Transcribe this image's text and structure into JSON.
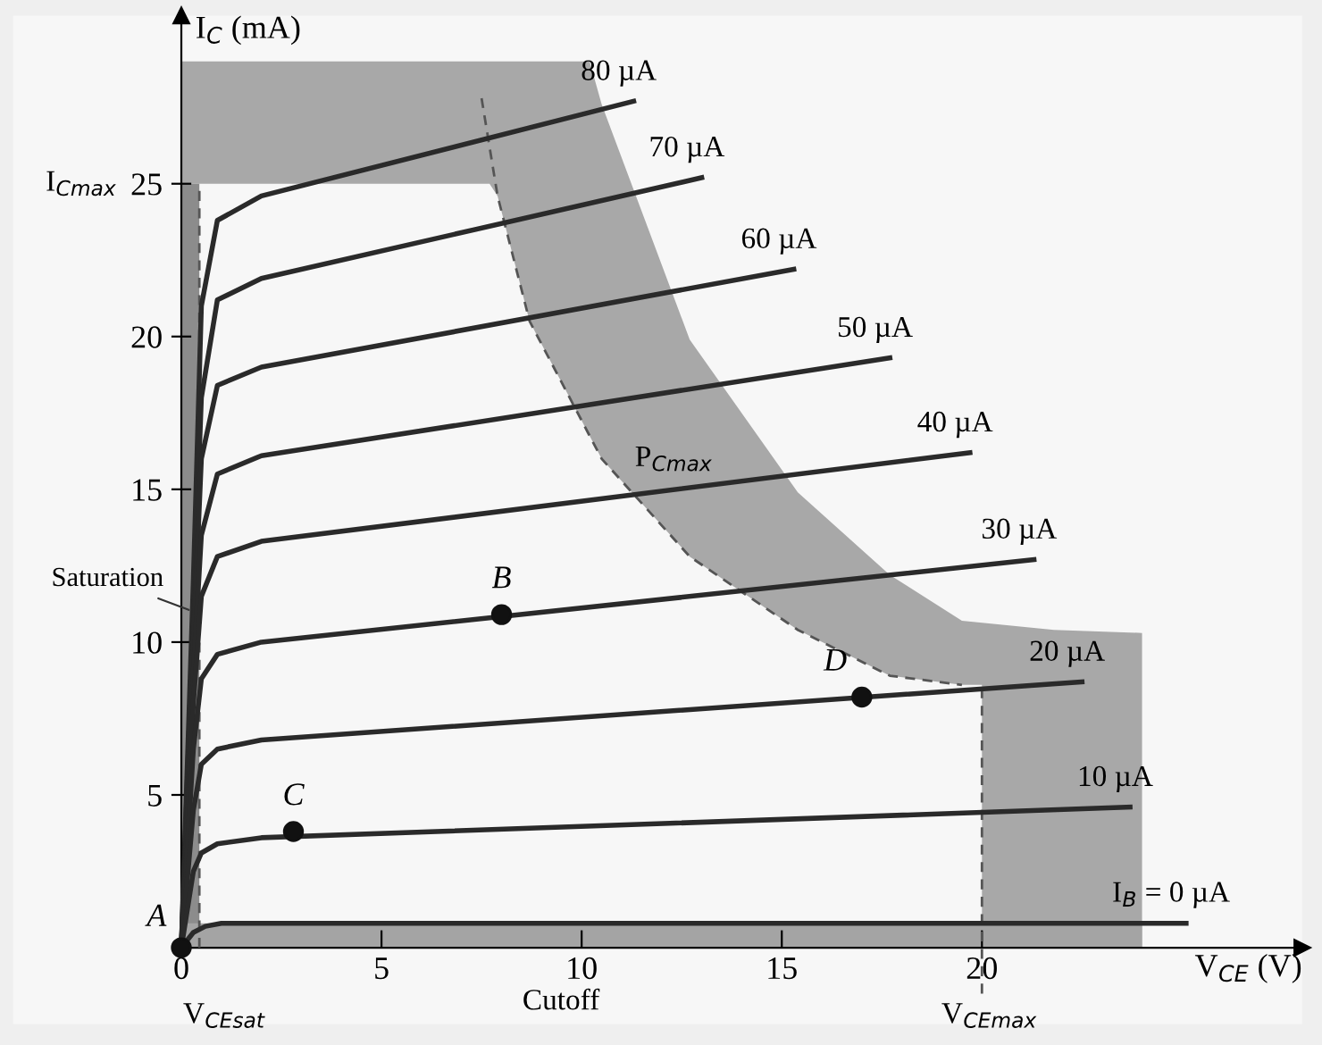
{
  "chart_data": {
    "type": "line",
    "xlabel": "V$_{CE}$ (V)",
    "ylabel": "I$_{C}$ (mA)",
    "xlim": [
      -4.2,
      28
    ],
    "ylim": [
      -2.5,
      30.5
    ],
    "xticks": [
      0,
      5,
      10,
      15,
      20
    ],
    "yticks": [
      5,
      10,
      15,
      20,
      25
    ],
    "grid": false,
    "legend": false,
    "series": [
      {
        "type": "area",
        "color": "#a8a8a8",
        "x": [
          0,
          10.2,
          10.5,
          12.7,
          15.4,
          17.7,
          19.5,
          21.8,
          24.0
        ],
        "values": [
          29.0,
          29.0,
          27.6,
          19.9,
          14.9,
          12.2,
          10.7,
          10.4,
          10.3
        ]
      },
      {
        "type": "area",
        "color": "#f7f7f7",
        "x": [
          0,
          7.7,
          7.9,
          8.7,
          10.5,
          12.7,
          15.4,
          17.7,
          19.5,
          20
        ],
        "values": [
          25,
          25,
          24.6,
          20.5,
          16.0,
          12.8,
          10.4,
          8.9,
          8.6,
          8.6
        ]
      },
      {
        "type": "area",
        "color": "#8c8c8c",
        "x": [
          0,
          0.45
        ],
        "values": [
          25,
          25
        ]
      },
      {
        "type": "area",
        "color": "#a4a4a4",
        "x": [
          0,
          24.0
        ],
        "values": [
          0.8,
          0.8
        ]
      },
      {
        "color": "#555555",
        "line_style": "dashed",
        "x": [
          7.5,
          7.9,
          8.7,
          10.5,
          12.7,
          15.4,
          17.7,
          19.5
        ],
        "values": [
          27.8,
          24.6,
          20.5,
          16.0,
          12.8,
          10.4,
          8.9,
          8.6
        ]
      },
      {
        "color": "#555555",
        "line_style": "dashed",
        "x": [
          0.45,
          0.45
        ],
        "values": [
          0,
          25
        ]
      },
      {
        "color": "#555555",
        "line_style": "dashed",
        "x": [
          20,
          20
        ],
        "values": [
          -1.5,
          8.6
        ]
      },
      {
        "name": "80 µA",
        "color": "#2a2a2a",
        "line_style": "solid",
        "x": [
          0,
          0.3,
          0.5,
          0.9,
          2.0,
          11.3
        ],
        "values": [
          0,
          12,
          21,
          23.8,
          24.6,
          27.7
        ]
      },
      {
        "name": "70 µA",
        "color": "#2a2a2a",
        "line_style": "solid",
        "x": [
          0,
          0.3,
          0.5,
          0.9,
          2.0,
          13.0
        ],
        "values": [
          0,
          11,
          18,
          21.2,
          21.9,
          25.2
        ]
      },
      {
        "name": "60 µA",
        "color": "#2a2a2a",
        "line_style": "solid",
        "x": [
          0,
          0.3,
          0.5,
          0.9,
          2.0,
          15.3
        ],
        "values": [
          0,
          10,
          16,
          18.4,
          19.0,
          22.2
        ]
      },
      {
        "name": "50 µA",
        "color": "#2a2a2a",
        "line_style": "solid",
        "x": [
          0,
          0.3,
          0.5,
          0.9,
          2.0,
          17.7
        ],
        "values": [
          0,
          9,
          13.5,
          15.5,
          16.1,
          19.3
        ]
      },
      {
        "name": "40 µA",
        "color": "#2a2a2a",
        "line_style": "solid",
        "x": [
          0,
          0.3,
          0.5,
          0.9,
          2.0,
          19.7
        ],
        "values": [
          0,
          8,
          11.5,
          12.8,
          13.3,
          16.2
        ]
      },
      {
        "name": "30 µA",
        "color": "#2a2a2a",
        "line_style": "solid",
        "x": [
          0,
          0.3,
          0.5,
          0.9,
          2.0,
          21.3
        ],
        "values": [
          0,
          6.5,
          8.8,
          9.6,
          10.0,
          12.7
        ]
      },
      {
        "name": "20 µA",
        "color": "#2a2a2a",
        "line_style": "solid",
        "x": [
          0,
          0.3,
          0.5,
          0.9,
          2.0,
          22.5
        ],
        "values": [
          0,
          4.5,
          6.0,
          6.5,
          6.8,
          8.7
        ]
      },
      {
        "name": "10 µA",
        "color": "#2a2a2a",
        "line_style": "solid",
        "x": [
          0,
          0.3,
          0.5,
          0.9,
          2.0,
          23.7
        ],
        "values": [
          0,
          2.5,
          3.1,
          3.4,
          3.6,
          4.6
        ]
      },
      {
        "name": "I$_{B}$ = 0 µA",
        "color": "#2a2a2a",
        "line_style": "solid",
        "x": [
          0,
          0.3,
          0.6,
          1.0,
          25.1
        ],
        "values": [
          0,
          0.5,
          0.7,
          0.8,
          0.8
        ]
      },
      {
        "type": "scatter",
        "marker": "circle",
        "color": "#111111",
        "x": [
          0,
          8.0,
          2.8,
          17.0
        ],
        "values": [
          0,
          10.9,
          3.8,
          8.2
        ]
      }
    ],
    "annotations": [
      {
        "text": "I$_{Cmax}$",
        "x": 0,
        "y": 25
      },
      {
        "text": "Saturation",
        "x": 0.3,
        "y": 11
      },
      "Cutoff",
      {
        "text": "V$_{CEsat}$",
        "x": 0.45,
        "y": 0
      },
      {
        "text": "V$_{CEmax}$",
        "x": 20,
        "y": 0
      },
      {
        "text": "P$_{Cmax}$",
        "x": 12.3,
        "y": 14.9
      },
      {
        "text": "A",
        "x": 0,
        "y": 0
      },
      {
        "text": "B",
        "x": 8.0,
        "y": 10.9
      },
      {
        "text": "C",
        "x": 2.8,
        "y": 3.8
      },
      {
        "text": "D",
        "x": 17.0,
        "y": 8.2
      }
    ]
  }
}
